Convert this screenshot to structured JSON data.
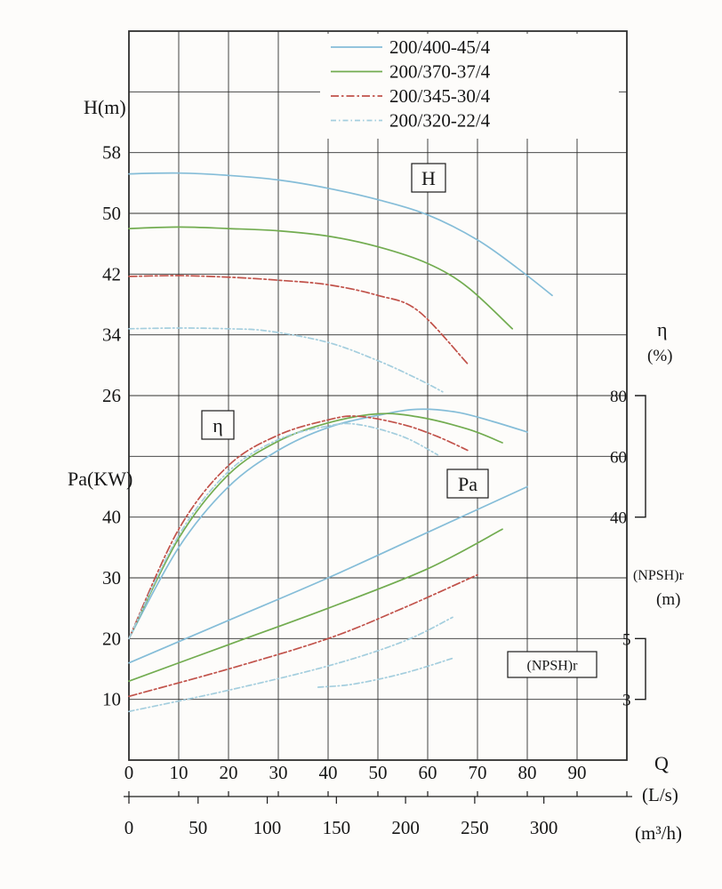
{
  "colors": {
    "c400": "#85bdd8",
    "c370": "#72ac50",
    "c345": "#c1524a",
    "c320": "#a4cede",
    "grid": "#2f2f2f",
    "axis": "#1c1c1c",
    "text": "#161616",
    "bg": "#fdfcfa"
  },
  "chart_data": {
    "type": "line",
    "legend": [
      {
        "label": "200/400-45/4",
        "color_key": "c400",
        "dash": "solid"
      },
      {
        "label": "200/370-37/4",
        "color_key": "c370",
        "dash": "solid"
      },
      {
        "label": "200/345-30/4",
        "color_key": "c345",
        "dash": "dashdot"
      },
      {
        "label": "200/320-22/4",
        "color_key": "c320",
        "dash": "dashdot2"
      }
    ],
    "axes": {
      "x": {
        "label": "Q",
        "unit_primary": "(L/s)",
        "unit_secondary": "(m³/h)",
        "range_lps": [
          0,
          100
        ],
        "ticks_lps": [
          0,
          10,
          20,
          30,
          40,
          50,
          60,
          70,
          80,
          90
        ],
        "ticks_m3h": [
          0,
          50,
          100,
          150,
          200,
          250,
          300
        ]
      },
      "H": {
        "label": "H(m)",
        "ticks": [
          58,
          50,
          42,
          34,
          26
        ]
      },
      "Pa": {
        "label": "Pa(KW)",
        "ticks": [
          40,
          30,
          20,
          10
        ]
      },
      "eta": {
        "label": "η",
        "unit": "(%)",
        "ticks": [
          80,
          60,
          40
        ]
      },
      "npsh": {
        "label": "(NPSH)r",
        "unit": "(m)",
        "ticks": [
          5,
          3
        ]
      }
    },
    "annotations": [
      {
        "text": "H"
      },
      {
        "text": "η"
      },
      {
        "text": "Pa"
      },
      {
        "text": "(NPSH)r"
      }
    ],
    "series": [
      {
        "pump": "200/400-45/4",
        "quantity": "H",
        "axis": "H",
        "color_key": "c400",
        "dash": "solid",
        "points": [
          [
            0,
            55.2
          ],
          [
            10,
            55.3
          ],
          [
            20,
            55.0
          ],
          [
            30,
            54.4
          ],
          [
            40,
            53.3
          ],
          [
            50,
            51.8
          ],
          [
            60,
            49.8
          ],
          [
            70,
            46.5
          ],
          [
            78,
            42.8
          ],
          [
            85,
            39.2
          ]
        ]
      },
      {
        "pump": "200/370-37/4",
        "quantity": "H",
        "axis": "H",
        "color_key": "c370",
        "dash": "solid",
        "points": [
          [
            0,
            48.0
          ],
          [
            10,
            48.2
          ],
          [
            20,
            48.0
          ],
          [
            30,
            47.7
          ],
          [
            40,
            47.0
          ],
          [
            50,
            45.6
          ],
          [
            60,
            43.4
          ],
          [
            68,
            40.3
          ],
          [
            77,
            34.8
          ]
        ]
      },
      {
        "pump": "200/345-30/4",
        "quantity": "H",
        "axis": "H",
        "color_key": "c345",
        "dash": "dashdot",
        "points": [
          [
            0,
            41.7
          ],
          [
            10,
            41.8
          ],
          [
            20,
            41.6
          ],
          [
            30,
            41.2
          ],
          [
            40,
            40.6
          ],
          [
            50,
            39.2
          ],
          [
            58,
            37.2
          ],
          [
            68,
            30.2
          ]
        ]
      },
      {
        "pump": "200/320-22/4",
        "quantity": "H",
        "axis": "H",
        "color_key": "c320",
        "dash": "dashdot2",
        "points": [
          [
            0,
            34.8
          ],
          [
            10,
            34.9
          ],
          [
            20,
            34.8
          ],
          [
            28,
            34.5
          ],
          [
            40,
            33.0
          ],
          [
            50,
            30.6
          ],
          [
            58,
            28.2
          ],
          [
            63,
            26.5
          ]
        ]
      },
      {
        "pump": "200/400-45/4",
        "quantity": "eta",
        "axis": "eta",
        "color_key": "c400",
        "dash": "solid",
        "points": [
          [
            0,
            0
          ],
          [
            10,
            30
          ],
          [
            20,
            50
          ],
          [
            30,
            62
          ],
          [
            40,
            69.5
          ],
          [
            50,
            73.5
          ],
          [
            58,
            75.5
          ],
          [
            66,
            74.5
          ],
          [
            73,
            71.5
          ],
          [
            80,
            68
          ]
        ]
      },
      {
        "pump": "200/370-37/4",
        "quantity": "eta",
        "axis": "eta",
        "color_key": "c370",
        "dash": "solid",
        "points": [
          [
            0,
            0
          ],
          [
            10,
            33
          ],
          [
            20,
            54
          ],
          [
            30,
            65
          ],
          [
            40,
            71
          ],
          [
            50,
            74
          ],
          [
            58,
            73
          ],
          [
            68,
            69
          ],
          [
            75,
            64.5
          ]
        ]
      },
      {
        "pump": "200/345-30/4",
        "quantity": "eta",
        "axis": "eta",
        "color_key": "c345",
        "dash": "dashdot",
        "points": [
          [
            0,
            0
          ],
          [
            10,
            36
          ],
          [
            20,
            57
          ],
          [
            30,
            67
          ],
          [
            40,
            72
          ],
          [
            46,
            73.2
          ],
          [
            55,
            70.5
          ],
          [
            62,
            66.5
          ],
          [
            68,
            62
          ]
        ]
      },
      {
        "pump": "200/320-22/4",
        "quantity": "eta",
        "axis": "eta",
        "color_key": "c320",
        "dash": "dashdot2",
        "points": [
          [
            0,
            0
          ],
          [
            10,
            34
          ],
          [
            20,
            55
          ],
          [
            30,
            65.5
          ],
          [
            40,
            70
          ],
          [
            46,
            70.5
          ],
          [
            55,
            66.5
          ],
          [
            62,
            60.5
          ]
        ]
      },
      {
        "pump": "200/400-45/4",
        "quantity": "Pa",
        "axis": "Pa",
        "color_key": "c400",
        "dash": "solid",
        "points": [
          [
            0,
            16
          ],
          [
            20,
            23
          ],
          [
            40,
            30
          ],
          [
            60,
            37.5
          ],
          [
            80,
            45
          ]
        ]
      },
      {
        "pump": "200/370-37/4",
        "quantity": "Pa",
        "axis": "Pa",
        "color_key": "c370",
        "dash": "solid",
        "points": [
          [
            0,
            13
          ],
          [
            20,
            19
          ],
          [
            40,
            25
          ],
          [
            60,
            31.5
          ],
          [
            75,
            38
          ]
        ]
      },
      {
        "pump": "200/345-30/4",
        "quantity": "Pa",
        "axis": "Pa",
        "color_key": "c345",
        "dash": "dashdot",
        "points": [
          [
            0,
            10.5
          ],
          [
            20,
            15
          ],
          [
            40,
            20
          ],
          [
            55,
            25
          ],
          [
            70,
            30.5
          ]
        ]
      },
      {
        "pump": "200/320-22/4",
        "quantity": "Pa",
        "axis": "Pa",
        "color_key": "c320",
        "dash": "dashdot2",
        "points": [
          [
            0,
            8
          ],
          [
            20,
            11.5
          ],
          [
            40,
            15.5
          ],
          [
            55,
            19.5
          ],
          [
            65,
            23.5
          ]
        ]
      },
      {
        "pump": "200/320-22/4",
        "quantity": "npsh",
        "axis": "npsh",
        "color_key": "c320",
        "dash": "dashdot2",
        "points": [
          [
            38,
            3.4
          ],
          [
            45,
            3.5
          ],
          [
            55,
            3.85
          ],
          [
            65,
            4.35
          ]
        ]
      }
    ]
  }
}
